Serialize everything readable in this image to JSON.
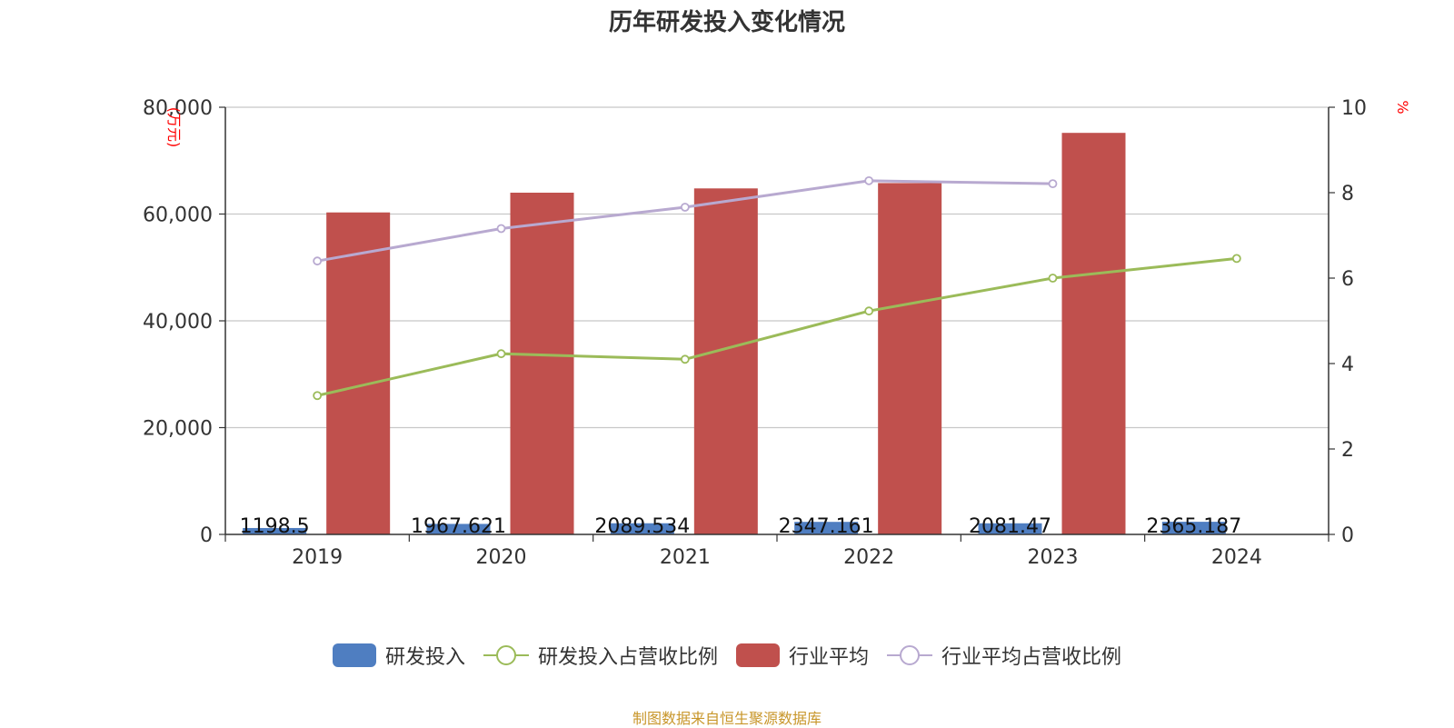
{
  "title": "历年研发投入变化情况",
  "source_note": "制图数据来自恒生聚源数据库",
  "colors": {
    "rd_investment": "#4f7ec1",
    "rd_ratio": "#9bbb59",
    "industry_avg": "#c0504d",
    "industry_ratio": "#b8a9d0",
    "axis_unit": "#ff0000",
    "grid": "#c8c8c8",
    "axis": "#333333",
    "source": "#c8962a"
  },
  "chart_data": {
    "type": "bar",
    "title": "历年研发投入变化情况",
    "categories": [
      "2019",
      "2020",
      "2021",
      "2022",
      "2023",
      "2024"
    ],
    "y_left": {
      "unit": "(万元)",
      "ylim": [
        0,
        80000
      ],
      "ticks": [
        "0",
        "20,000",
        "40,000",
        "60,000",
        "80,000"
      ],
      "tick_values": [
        0,
        20000,
        40000,
        60000,
        80000
      ]
    },
    "y_right": {
      "unit": "%",
      "ylim": [
        0,
        10
      ],
      "ticks": [
        "0",
        "2",
        "4",
        "6",
        "8",
        "10"
      ],
      "tick_values": [
        0,
        2,
        4,
        6,
        8,
        10
      ]
    },
    "grid": true,
    "legend_position": "bottom",
    "series": [
      {
        "name": "研发投入",
        "type": "bar",
        "axis": "left",
        "values": [
          1198.5,
          1967.621,
          2089.534,
          2347.161,
          2081.47,
          2365.187
        ],
        "labels": [
          "1198.5",
          "1967.621",
          "2089.534",
          "2347.161",
          "2081.47",
          "2365.187"
        ]
      },
      {
        "name": "研发投入占营收比例",
        "type": "line",
        "axis": "right",
        "values": [
          3.25,
          4.23,
          4.1,
          5.23,
          6.0,
          6.46
        ]
      },
      {
        "name": "行业平均",
        "type": "bar",
        "axis": "left",
        "values": [
          60300,
          64000,
          64800,
          65800,
          75200,
          null
        ]
      },
      {
        "name": "行业平均占营收比例",
        "type": "line",
        "axis": "right",
        "values": [
          6.4,
          7.16,
          7.66,
          8.28,
          8.21,
          null
        ]
      }
    ]
  }
}
